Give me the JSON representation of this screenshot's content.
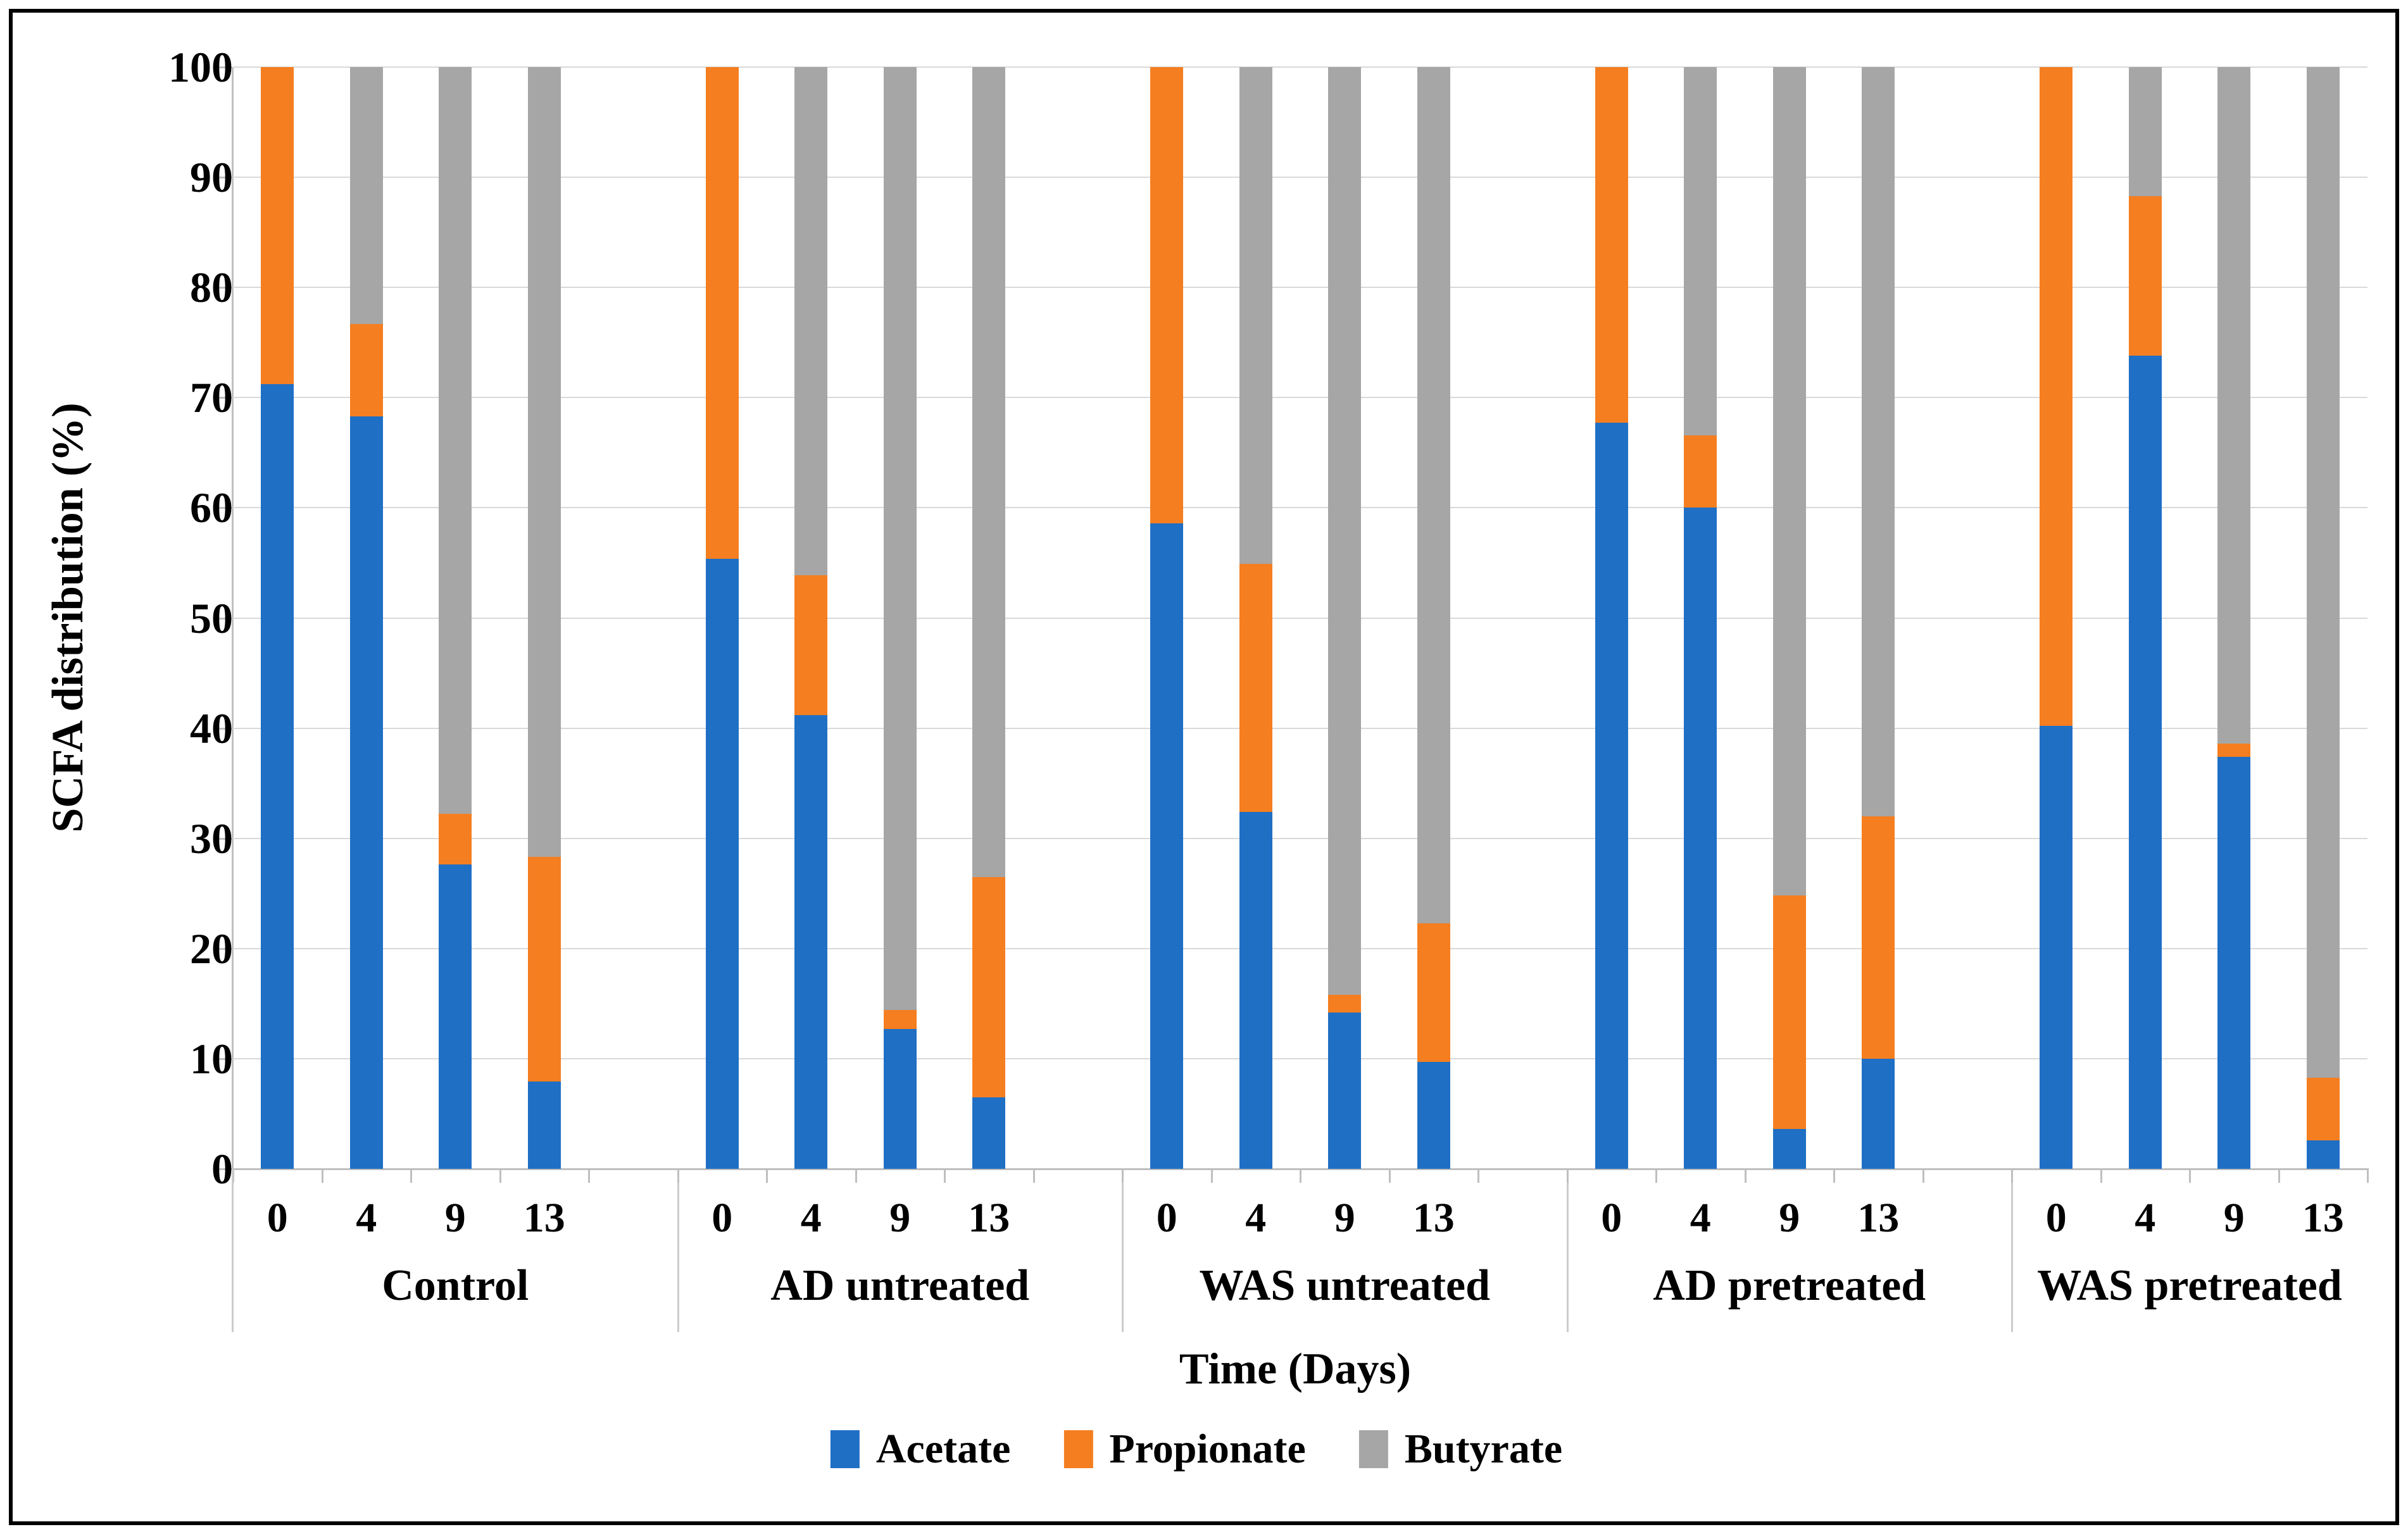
{
  "chart_data": {
    "type": "bar",
    "stacked": true,
    "percent_stacked": true,
    "title": "",
    "xlabel": "Time (Days)",
    "ylabel": "SCFA distribution (%)",
    "ylim": [
      0,
      100
    ],
    "y_ticks": [
      0,
      10,
      20,
      30,
      40,
      50,
      60,
      70,
      80,
      90,
      100
    ],
    "grid": "horizontal",
    "legend_position": "bottom",
    "categories_per_group": [
      "0",
      "4",
      "9",
      "13"
    ],
    "series": [
      {
        "name": "Acetate",
        "color": "#1f6fc5"
      },
      {
        "name": "Propionate",
        "color": "#f57e20"
      },
      {
        "name": "Butyrate",
        "color": "#a6a6a6"
      }
    ],
    "groups": [
      {
        "label": "Control",
        "values": {
          "Acetate": [
            71.2,
            68.3,
            27.6,
            7.9
          ],
          "Propionate": [
            28.8,
            8.4,
            4.6,
            20.4
          ],
          "Butyrate": [
            0.0,
            23.3,
            67.8,
            71.7
          ]
        }
      },
      {
        "label": "AD untreated",
        "values": {
          "Acetate": [
            55.4,
            41.2,
            12.7,
            6.5
          ],
          "Propionate": [
            44.6,
            12.7,
            1.7,
            20.0
          ],
          "Butyrate": [
            0.0,
            46.1,
            85.6,
            73.5
          ]
        }
      },
      {
        "label": "WAS untreated",
        "values": {
          "Acetate": [
            58.6,
            32.4,
            14.2,
            9.7
          ],
          "Propionate": [
            41.4,
            22.5,
            1.6,
            12.6
          ],
          "Butyrate": [
            0.0,
            45.1,
            84.2,
            77.7
          ]
        }
      },
      {
        "label": "AD pretreated",
        "values": {
          "Acetate": [
            67.7,
            60.0,
            3.6,
            10.0
          ],
          "Propionate": [
            32.3,
            6.6,
            21.2,
            22.0
          ],
          "Butyrate": [
            0.0,
            33.4,
            75.2,
            68.0
          ]
        }
      },
      {
        "label": "WAS pretreated",
        "values": {
          "Acetate": [
            40.2,
            73.8,
            37.4,
            2.6
          ],
          "Propionate": [
            59.8,
            14.5,
            1.2,
            5.7
          ],
          "Butyrate": [
            0.0,
            11.7,
            61.4,
            91.7
          ]
        }
      }
    ]
  },
  "colors": {
    "gridline": "#d9d9d9",
    "axis": "#bfbfbf",
    "separator": "#cccccc",
    "text": "#000000",
    "background": "#ffffff"
  }
}
